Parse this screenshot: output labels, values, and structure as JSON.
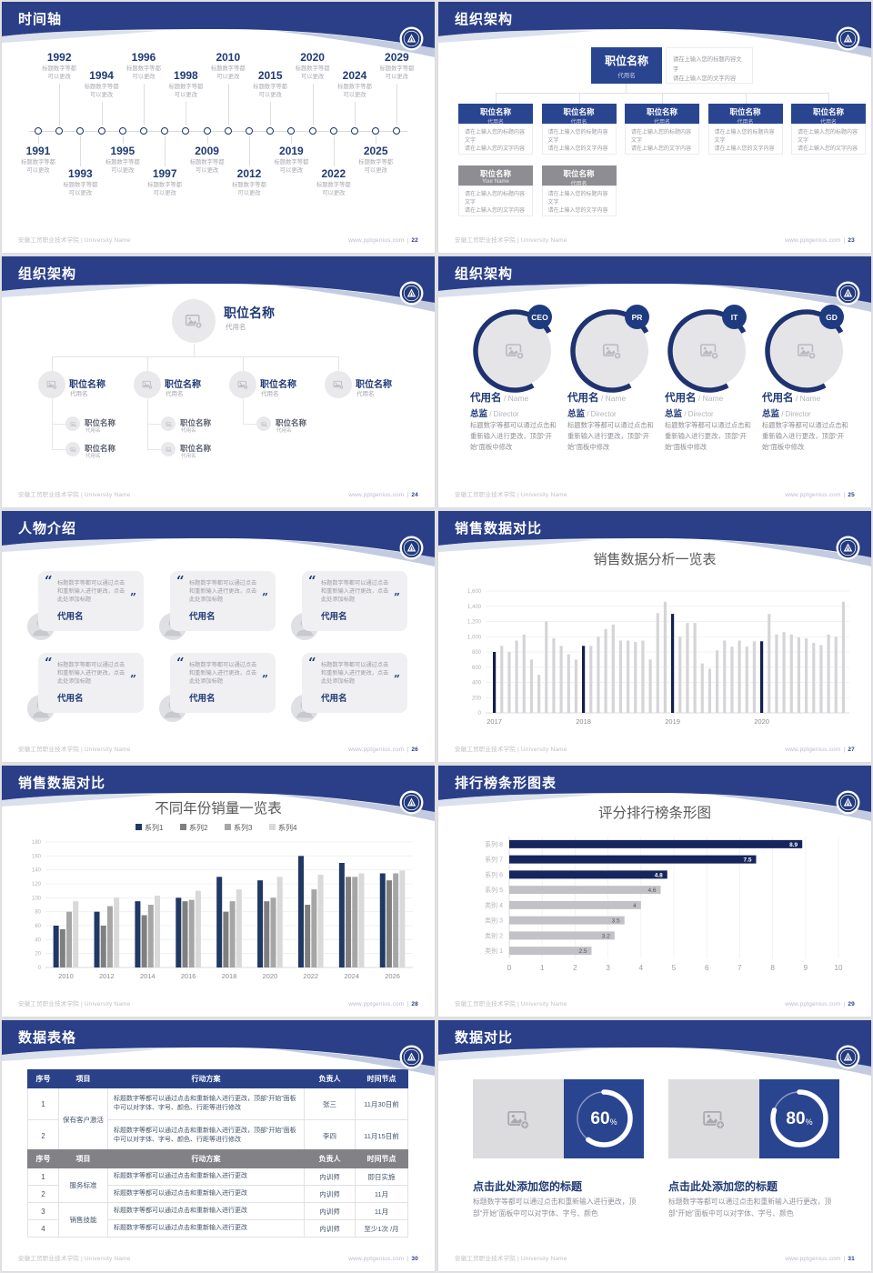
{
  "colors": {
    "brand_navy": "#2a3f87",
    "box_navy": "#2a4590",
    "dark_bar_navy": "#17255c",
    "badge_navy": "#1e3b80",
    "gray_header": "#828286",
    "light_bar_gray": "#d5d5d8"
  },
  "footer": {
    "org": "安徽工贸职业技术学院 | University Name",
    "site": "www.pptgenius.com",
    "divider": "|"
  },
  "slides": {
    "timeline": {
      "title": "时间轴",
      "page": "22",
      "desc_line1": "标题数字等都",
      "desc_line2": "可以更改",
      "entries": [
        {
          "year": "1991",
          "side": "bottom",
          "offset": "near"
        },
        {
          "year": "1992",
          "side": "top",
          "offset": "far"
        },
        {
          "year": "1993",
          "side": "bottom",
          "offset": "far"
        },
        {
          "year": "1994",
          "side": "top",
          "offset": "near"
        },
        {
          "year": "1995",
          "side": "bottom",
          "offset": "near"
        },
        {
          "year": "1996",
          "side": "top",
          "offset": "far"
        },
        {
          "year": "1997",
          "side": "bottom",
          "offset": "far"
        },
        {
          "year": "1998",
          "side": "top",
          "offset": "near"
        },
        {
          "year": "2009",
          "side": "bottom",
          "offset": "near"
        },
        {
          "year": "2010",
          "side": "top",
          "offset": "far"
        },
        {
          "year": "2012",
          "side": "bottom",
          "offset": "far"
        },
        {
          "year": "2015",
          "side": "top",
          "offset": "near"
        },
        {
          "year": "2019",
          "side": "bottom",
          "offset": "near"
        },
        {
          "year": "2020",
          "side": "top",
          "offset": "far"
        },
        {
          "year": "2022",
          "side": "bottom",
          "offset": "far"
        },
        {
          "year": "2024",
          "side": "top",
          "offset": "near"
        },
        {
          "year": "2025",
          "side": "bottom",
          "offset": "near"
        },
        {
          "year": "2029",
          "side": "top",
          "offset": "far"
        }
      ]
    },
    "org_boxes": {
      "title": "组织架构",
      "page": "23",
      "root": {
        "title": "职位名称",
        "subtitle": "代用名"
      },
      "note_line1": "请在上输入您的标题内容文字",
      "note_line2": "请在上输入您的文字内容",
      "children": [
        {
          "title": "职位名称",
          "subtitle": "代用名",
          "line1": "请在上输入您的标题内容文字",
          "line2": "请在上输入您的文字内容"
        },
        {
          "title": "职位名称",
          "subtitle": "代用名",
          "line1": "请在上输入您的标题内容文字",
          "line2": "请在上输入您的文字内容"
        },
        {
          "title": "职位名称",
          "subtitle": "代用名",
          "line1": "请在上输入您的标题内容文字",
          "line2": "请在上输入您的文字内容"
        },
        {
          "title": "职位名称",
          "subtitle": "代用名",
          "line1": "请在上输入您的标题内容文字",
          "line2": "请在上输入您的文字内容"
        },
        {
          "title": "职位名称",
          "subtitle": "代用名",
          "line1": "请在上输入您的标题内容文字",
          "line2": "请在上输入您的文字内容"
        }
      ],
      "managers": [
        {
          "title": "职位名称",
          "subtitle": "Your Name",
          "line1": "请在上输入您的标题内容文字",
          "line2": "请在上输入您的文字内容"
        },
        {
          "title": "职位名称",
          "subtitle": "代用名",
          "line1": "请在上输入您的标题内容文字",
          "line2": "请在上输入您的文字内容"
        }
      ]
    },
    "org_tree": {
      "title": "组织架构",
      "page": "24",
      "root": {
        "title": "职位名称",
        "subtitle": "代用名"
      },
      "nodes": [
        {
          "title": "职位名称",
          "subtitle": "代用名",
          "subs": [
            {
              "title": "职位名称",
              "subtitle": "代用名"
            },
            {
              "title": "职位名称",
              "subtitle": "代用名"
            }
          ]
        },
        {
          "title": "职位名称",
          "subtitle": "代用名",
          "subs": [
            {
              "title": "职位名称",
              "subtitle": "代用名"
            },
            {
              "title": "职位名称",
              "subtitle": "代用名"
            }
          ]
        },
        {
          "title": "职位名称",
          "subtitle": "代用名",
          "subs": [
            {
              "title": "职位名称",
              "subtitle": "代用名"
            }
          ]
        },
        {
          "title": "职位名称",
          "subtitle": "代用名",
          "subs": []
        }
      ]
    },
    "org_people": {
      "title": "组织架构",
      "page": "25",
      "roles": [
        {
          "badge": "CEO",
          "name": "代用名",
          "name_en": "Name",
          "role": "总监",
          "role_en": "Director",
          "body": "标题数字等都可以通过点击和重新输入进行更改，顶部“开始”面板中修改"
        },
        {
          "badge": "PR",
          "name": "代用名",
          "name_en": "Name",
          "role": "总监",
          "role_en": "Director",
          "body": "标题数字等都可以通过点击和重新输入进行更改，顶部“开始”面板中修改"
        },
        {
          "badge": "IT",
          "name": "代用名",
          "name_en": "Name",
          "role": "总监",
          "role_en": "Director",
          "body": "标题数字等都可以通过点击和重新输入进行更改，顶部“开始”面板中修改"
        },
        {
          "badge": "GD",
          "name": "代用名",
          "name_en": "Name",
          "role": "总监",
          "role_en": "Director",
          "body": "标题数字等都可以通过点击和重新输入进行更改，顶部“开始”面板中修改"
        }
      ],
      "sep": "/"
    },
    "people_intro": {
      "title": "人物介绍",
      "page": "26",
      "cards": [
        {
          "quote": "标题数字等都可以通过点击和重新输入进行更改，点击此处添加标题",
          "name": "代用名"
        },
        {
          "quote": "标题数字等都可以通过点击和重新输入进行更改，点击此处添加标题",
          "name": "代用名"
        },
        {
          "quote": "标题数字等都可以通过点击和重新输入进行更改，点击此处添加标题",
          "name": "代用名"
        },
        {
          "quote": "标题数字等都可以通过点击和重新输入进行更改，点击此处添加标题",
          "name": "代用名"
        },
        {
          "quote": "标题数字等都可以通过点击和重新输入进行更改，点击此处添加标题",
          "name": "代用名"
        },
        {
          "quote": "标题数字等都可以通过点击和重新输入进行更改，点击此处添加标题",
          "name": "代用名"
        }
      ]
    },
    "sales_monthly": {
      "title": "销售数据对比",
      "page": "27"
    },
    "sales_yearly": {
      "title": "销售数据对比",
      "page": "28"
    },
    "ranking": {
      "title": "排行榜条形图表",
      "page": "29"
    },
    "tables": {
      "title": "数据表格",
      "page": "30",
      "table1": {
        "headers": [
          "序号",
          "项目",
          "行动方案",
          "负责人",
          "时间节点"
        ],
        "group": "保有客户激活",
        "rows": [
          {
            "no": "1",
            "action": "标题数字等都可以通过点击和重新输入进行更改，顶部“开始”面板中可以对字体、字号、颜色、行距等进行修改",
            "owner": "张三",
            "time": "11月30日前"
          },
          {
            "no": "2",
            "action": "标题数字等都可以通过点击和重新输入进行更改，顶部“开始”面板中可以对字体、字号、颜色、行距等进行修改",
            "owner": "李四",
            "time": "11月15日前"
          }
        ]
      },
      "table2": {
        "headers": [
          "序号",
          "项目",
          "行动方案",
          "负责人",
          "时间节点"
        ],
        "groups": [
          {
            "label": "服务标准",
            "span": 2
          },
          {
            "label": "销售技能",
            "span": 2
          }
        ],
        "rows": [
          {
            "no": "1",
            "action": "标题数字等都可以通过点击和重新输入进行更改",
            "owner": "内训师",
            "time": "即日实施"
          },
          {
            "no": "2",
            "action": "标题数字等都可以通过点击和重新输入进行更改",
            "owner": "内训师",
            "time": "11月"
          },
          {
            "no": "3",
            "action": "标题数字等都可以通过点击和重新输入进行更改",
            "owner": "内训师",
            "time": "11月"
          },
          {
            "no": "4",
            "action": "标题数字等都可以通过点击和重新输入进行更改",
            "owner": "内训师",
            "time": "至少1次 /月"
          }
        ]
      }
    },
    "compare": {
      "title": "数据对比",
      "page": "31",
      "items": [
        {
          "percent": 60,
          "unit": "%",
          "heading": "点击此处添加您的标题",
          "body": "标题数字等都可以通过点击和重新输入进行更改，顶部“开始”面板中可以对字体、字号、颜色"
        },
        {
          "percent": 80,
          "unit": "%",
          "heading": "点击此处添加您的标题",
          "body": "标题数字等都可以通过点击和重新输入进行更改，顶部“开始”面板中可以对字体、字号、颜色"
        }
      ]
    }
  },
  "chart_data": [
    {
      "type": "bar",
      "title": "销售数据分析一览表",
      "xlabel": "",
      "ylabel": "",
      "x_group_labels": [
        "2017",
        "2018",
        "2019",
        "2020"
      ],
      "highlight_indices": [
        0,
        12,
        24,
        36
      ],
      "values": [
        800,
        880,
        800,
        950,
        1030,
        700,
        500,
        1200,
        980,
        880,
        770,
        700,
        880,
        880,
        1000,
        1100,
        1160,
        950,
        950,
        930,
        950,
        700,
        1310,
        1460,
        1300,
        1000,
        1180,
        1180,
        650,
        580,
        820,
        950,
        870,
        950,
        870,
        940,
        940,
        1300,
        1030,
        1060,
        1030,
        990,
        980,
        920,
        890,
        1030,
        1000,
        1460
      ],
      "ylim": [
        0,
        1600
      ],
      "ytick": 200,
      "grid": true,
      "bar_color": "#d5d5d8",
      "highlight_color": "#141f4e"
    },
    {
      "type": "bar",
      "title": "不同年份销量一览表",
      "xlabel": "",
      "ylabel": "",
      "categories": [
        "2010",
        "2012",
        "2014",
        "2016",
        "2018",
        "2020",
        "2022",
        "2024",
        "2026"
      ],
      "series": [
        {
          "name": "系列1",
          "color": "#1f3864",
          "values": [
            60,
            80,
            95,
            100,
            130,
            125,
            160,
            150,
            135
          ]
        },
        {
          "name": "系列2",
          "color": "#7f7f7f",
          "values": [
            55,
            60,
            75,
            95,
            80,
            95,
            90,
            130,
            125
          ]
        },
        {
          "name": "系列3",
          "color": "#a6a6a6",
          "values": [
            80,
            88,
            90,
            97,
            95,
            100,
            112,
            130,
            135
          ]
        },
        {
          "name": "系列4",
          "color": "#d9d9d9",
          "values": [
            95,
            100,
            103,
            110,
            112,
            130,
            133,
            135,
            139
          ]
        }
      ],
      "ylim": [
        0,
        180
      ],
      "ytick": 20,
      "grid": true,
      "legend_position": "top"
    },
    {
      "type": "bar",
      "orientation": "horizontal",
      "title": "评分排行榜条形图",
      "categories": [
        "系列 8",
        "系列 7",
        "系列 6",
        "系列 5",
        "类别 4",
        "类别 3",
        "类别 2",
        "类别 1"
      ],
      "values": [
        8.9,
        7.5,
        4.8,
        4.6,
        4,
        3.5,
        3.2,
        2.5
      ],
      "bar_colors": [
        "#17255c",
        "#17255c",
        "#17255c",
        "#c2c2c6",
        "#c2c2c6",
        "#c2c2c6",
        "#c2c2c6",
        "#c2c2c6"
      ],
      "xlim": [
        0,
        10
      ],
      "xtick": 1,
      "grid": true,
      "value_labels": true
    }
  ]
}
